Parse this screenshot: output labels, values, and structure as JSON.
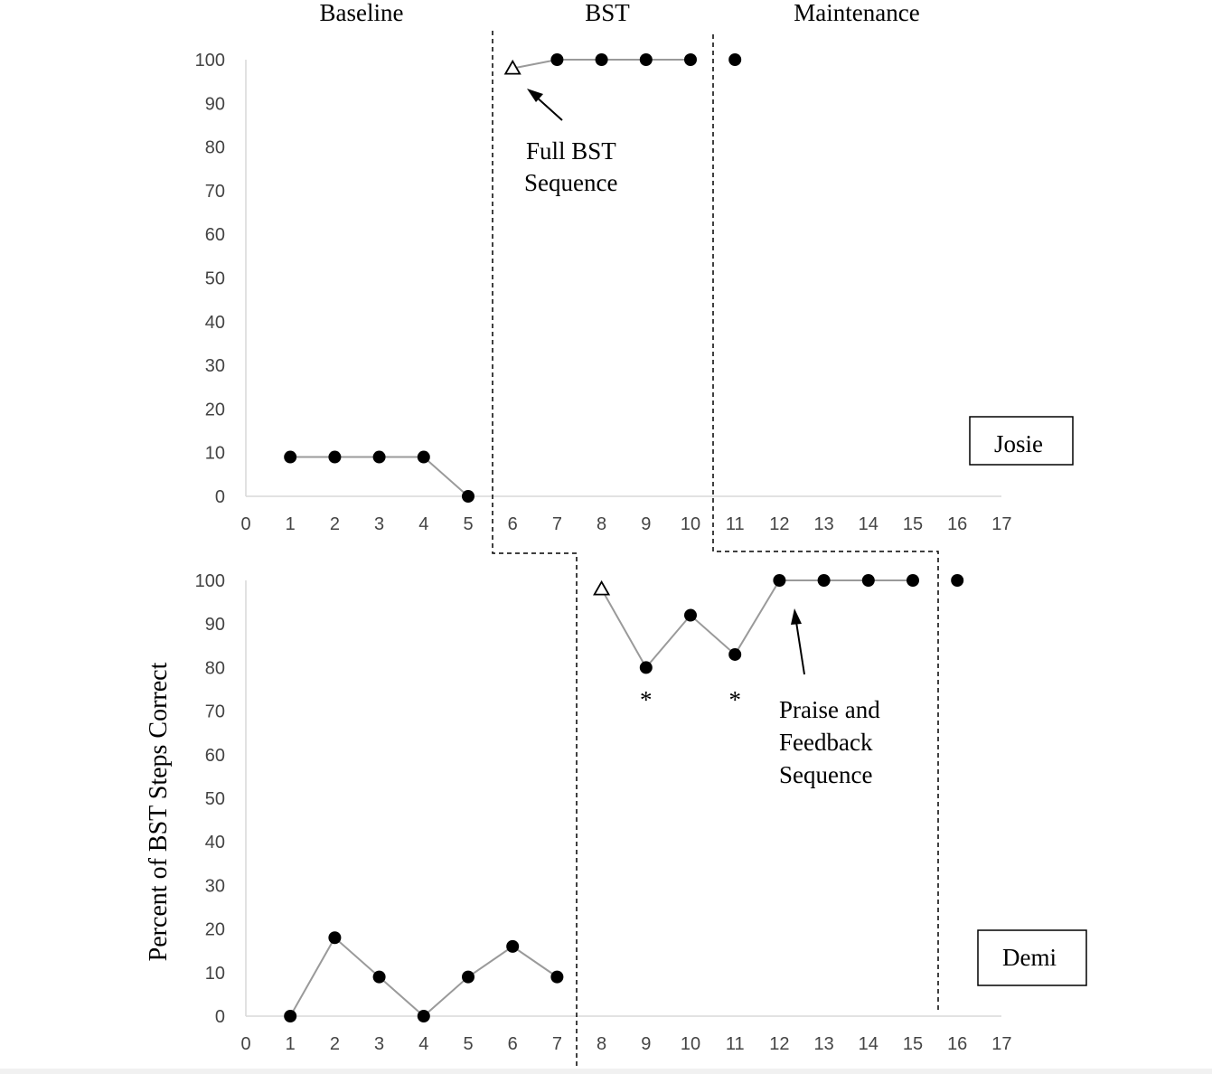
{
  "chart_data": {
    "type": "line",
    "ylabel": "Percent of BST Steps Correct",
    "phases": [
      "Baseline",
      "BST",
      "Maintenance"
    ],
    "xlim": [
      0,
      17
    ],
    "ylim": [
      0,
      100
    ],
    "yticks": [
      0,
      10,
      20,
      30,
      40,
      50,
      60,
      70,
      80,
      90,
      100
    ],
    "xticks": [
      0,
      1,
      2,
      3,
      4,
      5,
      6,
      7,
      8,
      9,
      10,
      11,
      12,
      13,
      14,
      15,
      16,
      17
    ],
    "panels": [
      {
        "name": "Josie",
        "phase_change_after": [
          5.5,
          10.5
        ],
        "series": [
          {
            "phase": "Baseline",
            "x": [
              1,
              2,
              3,
              4,
              5
            ],
            "y": [
              9,
              9,
              9,
              9,
              0
            ],
            "markers": [
              "circle",
              "circle",
              "circle",
              "circle",
              "circle"
            ]
          },
          {
            "phase": "BST",
            "x": [
              6,
              7,
              8,
              9,
              10
            ],
            "y": [
              98,
              100,
              100,
              100,
              100
            ],
            "markers": [
              "triangle",
              "circle",
              "circle",
              "circle",
              "circle"
            ]
          },
          {
            "phase": "Maintenance",
            "x": [
              11
            ],
            "y": [
              100
            ],
            "markers": [
              "circle"
            ]
          }
        ],
        "annotations": [
          {
            "text_lines": [
              "Full BST",
              "Sequence"
            ],
            "points_to": {
              "x": 6.35,
              "y": 94
            }
          }
        ],
        "asterisks": []
      },
      {
        "name": "Demi",
        "phase_change_after": [
          7.5,
          15.5
        ],
        "series": [
          {
            "phase": "Baseline",
            "x": [
              1,
              2,
              3,
              4,
              5,
              6,
              7
            ],
            "y": [
              0,
              18,
              9,
              0,
              9,
              16,
              9
            ],
            "markers": [
              "circle",
              "circle",
              "circle",
              "circle",
              "circle",
              "circle",
              "circle"
            ]
          },
          {
            "phase": "BST",
            "x": [
              8,
              9,
              10,
              11,
              12,
              13,
              14,
              15
            ],
            "y": [
              98,
              80,
              92,
              83,
              100,
              100,
              100,
              100
            ],
            "markers": [
              "triangle",
              "circle",
              "circle",
              "circle",
              "circle",
              "circle",
              "circle",
              "circle"
            ]
          },
          {
            "phase": "Maintenance",
            "x": [
              16
            ],
            "y": [
              100
            ],
            "markers": [
              "circle"
            ]
          }
        ],
        "annotations": [
          {
            "text_lines": [
              "Praise and",
              "Feedback",
              "Sequence"
            ],
            "points_to": {
              "x": 12.35,
              "y": 97
            }
          }
        ],
        "asterisks": [
          {
            "x": 9,
            "text": "*"
          },
          {
            "x": 11,
            "text": "*"
          }
        ]
      }
    ]
  }
}
